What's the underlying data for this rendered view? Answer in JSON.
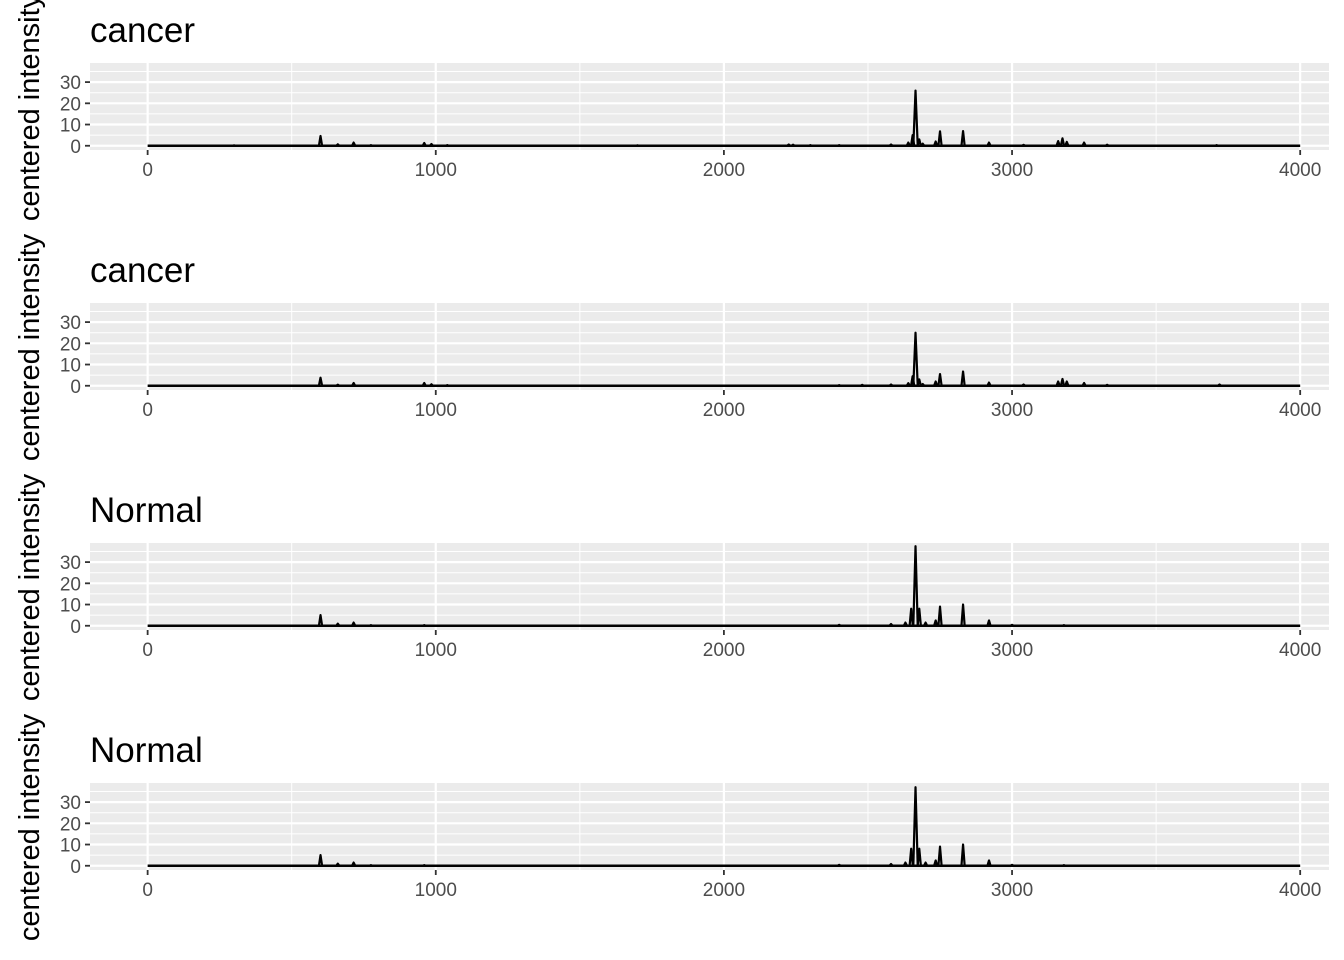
{
  "chart_data": [
    {
      "type": "line",
      "title": "cancer",
      "xlabel": "",
      "ylabel": "centered intensity",
      "xlim": [
        -200,
        4100
      ],
      "ylim": [
        -2,
        39
      ],
      "xticks": [
        "0",
        "1000",
        "2000",
        "3000",
        "4000"
      ],
      "yticks": [
        "0",
        "10",
        "20",
        "30"
      ],
      "xtick_values": [
        0,
        1000,
        2000,
        3000,
        4000
      ],
      "ytick_values": [
        0,
        10,
        20,
        30
      ],
      "grid": true,
      "color": "#000000",
      "background": "#ebebeb",
      "baseline": 0,
      "peaks": [
        [
          300,
          0.2
        ],
        [
          600,
          4.6
        ],
        [
          660,
          0.7
        ],
        [
          715,
          1.5
        ],
        [
          775,
          0.3
        ],
        [
          960,
          1.3
        ],
        [
          985,
          0.8
        ],
        [
          1040,
          0.3
        ],
        [
          1700,
          0.2
        ],
        [
          2225,
          0.6
        ],
        [
          2240,
          0.5
        ],
        [
          2300,
          0.3
        ],
        [
          2400,
          0.3
        ],
        [
          2580,
          0.6
        ],
        [
          2640,
          1.5
        ],
        [
          2655,
          5.0
        ],
        [
          2665,
          26.0
        ],
        [
          2678,
          3.0
        ],
        [
          2690,
          1.0
        ],
        [
          2735,
          2.0
        ],
        [
          2750,
          6.8
        ],
        [
          2830,
          6.9
        ],
        [
          2920,
          1.5
        ],
        [
          3040,
          0.4
        ],
        [
          3160,
          2.2
        ],
        [
          3175,
          3.5
        ],
        [
          3190,
          1.8
        ],
        [
          3250,
          1.5
        ],
        [
          3330,
          0.5
        ],
        [
          3710,
          0.3
        ]
      ]
    },
    {
      "type": "line",
      "title": "cancer",
      "xlabel": "",
      "ylabel": "centered intensity",
      "xlim": [
        -200,
        4100
      ],
      "ylim": [
        -2,
        39
      ],
      "xticks": [
        "0",
        "1000",
        "2000",
        "3000",
        "4000"
      ],
      "yticks": [
        "0",
        "10",
        "20",
        "30"
      ],
      "xtick_values": [
        0,
        1000,
        2000,
        3000,
        4000
      ],
      "ytick_values": [
        0,
        10,
        20,
        30
      ],
      "grid": true,
      "color": "#000000",
      "background": "#ebebeb",
      "baseline": 0,
      "peaks": [
        [
          600,
          3.8
        ],
        [
          660,
          0.5
        ],
        [
          715,
          1.3
        ],
        [
          960,
          1.3
        ],
        [
          985,
          0.7
        ],
        [
          1040,
          0.3
        ],
        [
          2400,
          0.3
        ],
        [
          2480,
          0.4
        ],
        [
          2580,
          0.6
        ],
        [
          2640,
          1.2
        ],
        [
          2655,
          4.5
        ],
        [
          2665,
          25.0
        ],
        [
          2678,
          3.0
        ],
        [
          2690,
          0.8
        ],
        [
          2735,
          2.0
        ],
        [
          2750,
          5.5
        ],
        [
          2830,
          6.7
        ],
        [
          2920,
          1.5
        ],
        [
          3040,
          0.6
        ],
        [
          3160,
          2.0
        ],
        [
          3175,
          3.2
        ],
        [
          3190,
          2.0
        ],
        [
          3250,
          1.3
        ],
        [
          3330,
          0.4
        ],
        [
          3720,
          0.6
        ]
      ]
    },
    {
      "type": "line",
      "title": "Normal",
      "xlabel": "",
      "ylabel": "centered intensity",
      "xlim": [
        -200,
        4100
      ],
      "ylim": [
        -2,
        39
      ],
      "xticks": [
        "0",
        "1000",
        "2000",
        "3000",
        "4000"
      ],
      "yticks": [
        "0",
        "10",
        "20",
        "30"
      ],
      "xtick_values": [
        0,
        1000,
        2000,
        3000,
        4000
      ],
      "ytick_values": [
        0,
        10,
        20,
        30
      ],
      "grid": true,
      "color": "#000000",
      "background": "#ebebeb",
      "baseline": 0,
      "peaks": [
        [
          600,
          5.0
        ],
        [
          660,
          1.0
        ],
        [
          715,
          1.5
        ],
        [
          775,
          0.3
        ],
        [
          960,
          0.3
        ],
        [
          2400,
          0.4
        ],
        [
          2580,
          0.8
        ],
        [
          2630,
          1.5
        ],
        [
          2650,
          8.0
        ],
        [
          2665,
          37.5
        ],
        [
          2678,
          8.0
        ],
        [
          2700,
          1.5
        ],
        [
          2735,
          2.5
        ],
        [
          2750,
          9.0
        ],
        [
          2830,
          10.0
        ],
        [
          2920,
          2.5
        ],
        [
          3000,
          0.4
        ],
        [
          3180,
          0.3
        ]
      ]
    },
    {
      "type": "line",
      "title": "Normal",
      "xlabel": "",
      "ylabel": "centered intensity",
      "xlim": [
        -200,
        4100
      ],
      "ylim": [
        -2,
        39
      ],
      "xticks": [
        "0",
        "1000",
        "2000",
        "3000",
        "4000"
      ],
      "yticks": [
        "0",
        "10",
        "20",
        "30"
      ],
      "xtick_values": [
        0,
        1000,
        2000,
        3000,
        4000
      ],
      "ytick_values": [
        0,
        10,
        20,
        30
      ],
      "grid": true,
      "color": "#000000",
      "background": "#ebebeb",
      "baseline": 0,
      "peaks": [
        [
          600,
          5.0
        ],
        [
          660,
          1.0
        ],
        [
          715,
          1.5
        ],
        [
          775,
          0.3
        ],
        [
          960,
          0.3
        ],
        [
          2400,
          0.4
        ],
        [
          2580,
          0.8
        ],
        [
          2630,
          1.5
        ],
        [
          2650,
          8.0
        ],
        [
          2665,
          37.0
        ],
        [
          2678,
          8.0
        ],
        [
          2700,
          1.5
        ],
        [
          2735,
          2.5
        ],
        [
          2750,
          9.0
        ],
        [
          2830,
          10.0
        ],
        [
          2920,
          2.5
        ],
        [
          3000,
          0.4
        ],
        [
          3180,
          0.3
        ]
      ]
    }
  ]
}
